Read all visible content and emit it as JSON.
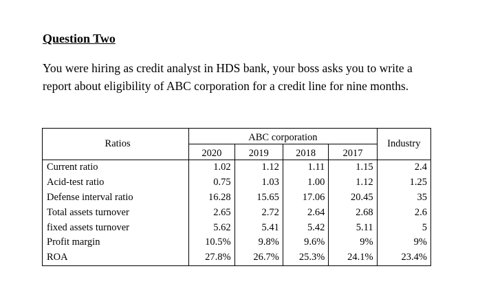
{
  "heading": "Question Two",
  "paragraph": "You were hiring as credit analyst in HDS bank, your boss asks you to write a report about eligibility of ABC corporation for a credit line for nine months.",
  "table": {
    "ratios_header": "Ratios",
    "company_header": "ABC corporation",
    "industry_header": "Industry",
    "years": [
      "2020",
      "2019",
      "2018",
      "2017"
    ],
    "rows": [
      {
        "label": "Current ratio",
        "values": [
          "1.02",
          "1.12",
          "1.11",
          "1.15"
        ],
        "industry": "2.4"
      },
      {
        "label": "Acid-test ratio",
        "values": [
          "0.75",
          "1.03",
          "1.00",
          "1.12"
        ],
        "industry": "1.25"
      },
      {
        "label": "Defense interval ratio",
        "values": [
          "16.28",
          "15.65",
          "17.06",
          "20.45"
        ],
        "industry": "35"
      },
      {
        "label": "Total assets turnover",
        "values": [
          "2.65",
          "2.72",
          "2.64",
          "2.68"
        ],
        "industry": "2.6"
      },
      {
        "label": "fixed assets turnover",
        "values": [
          "5.62",
          "5.41",
          "5.42",
          "5.11"
        ],
        "industry": "5"
      },
      {
        "label": "Profit margin",
        "values": [
          "10.5%",
          "9.8%",
          "9.6%",
          "9%"
        ],
        "industry": "9%"
      },
      {
        "label": "ROA",
        "values": [
          "27.8%",
          "26.7%",
          "25.3%",
          "24.1%"
        ],
        "industry": "23.4%"
      }
    ]
  }
}
